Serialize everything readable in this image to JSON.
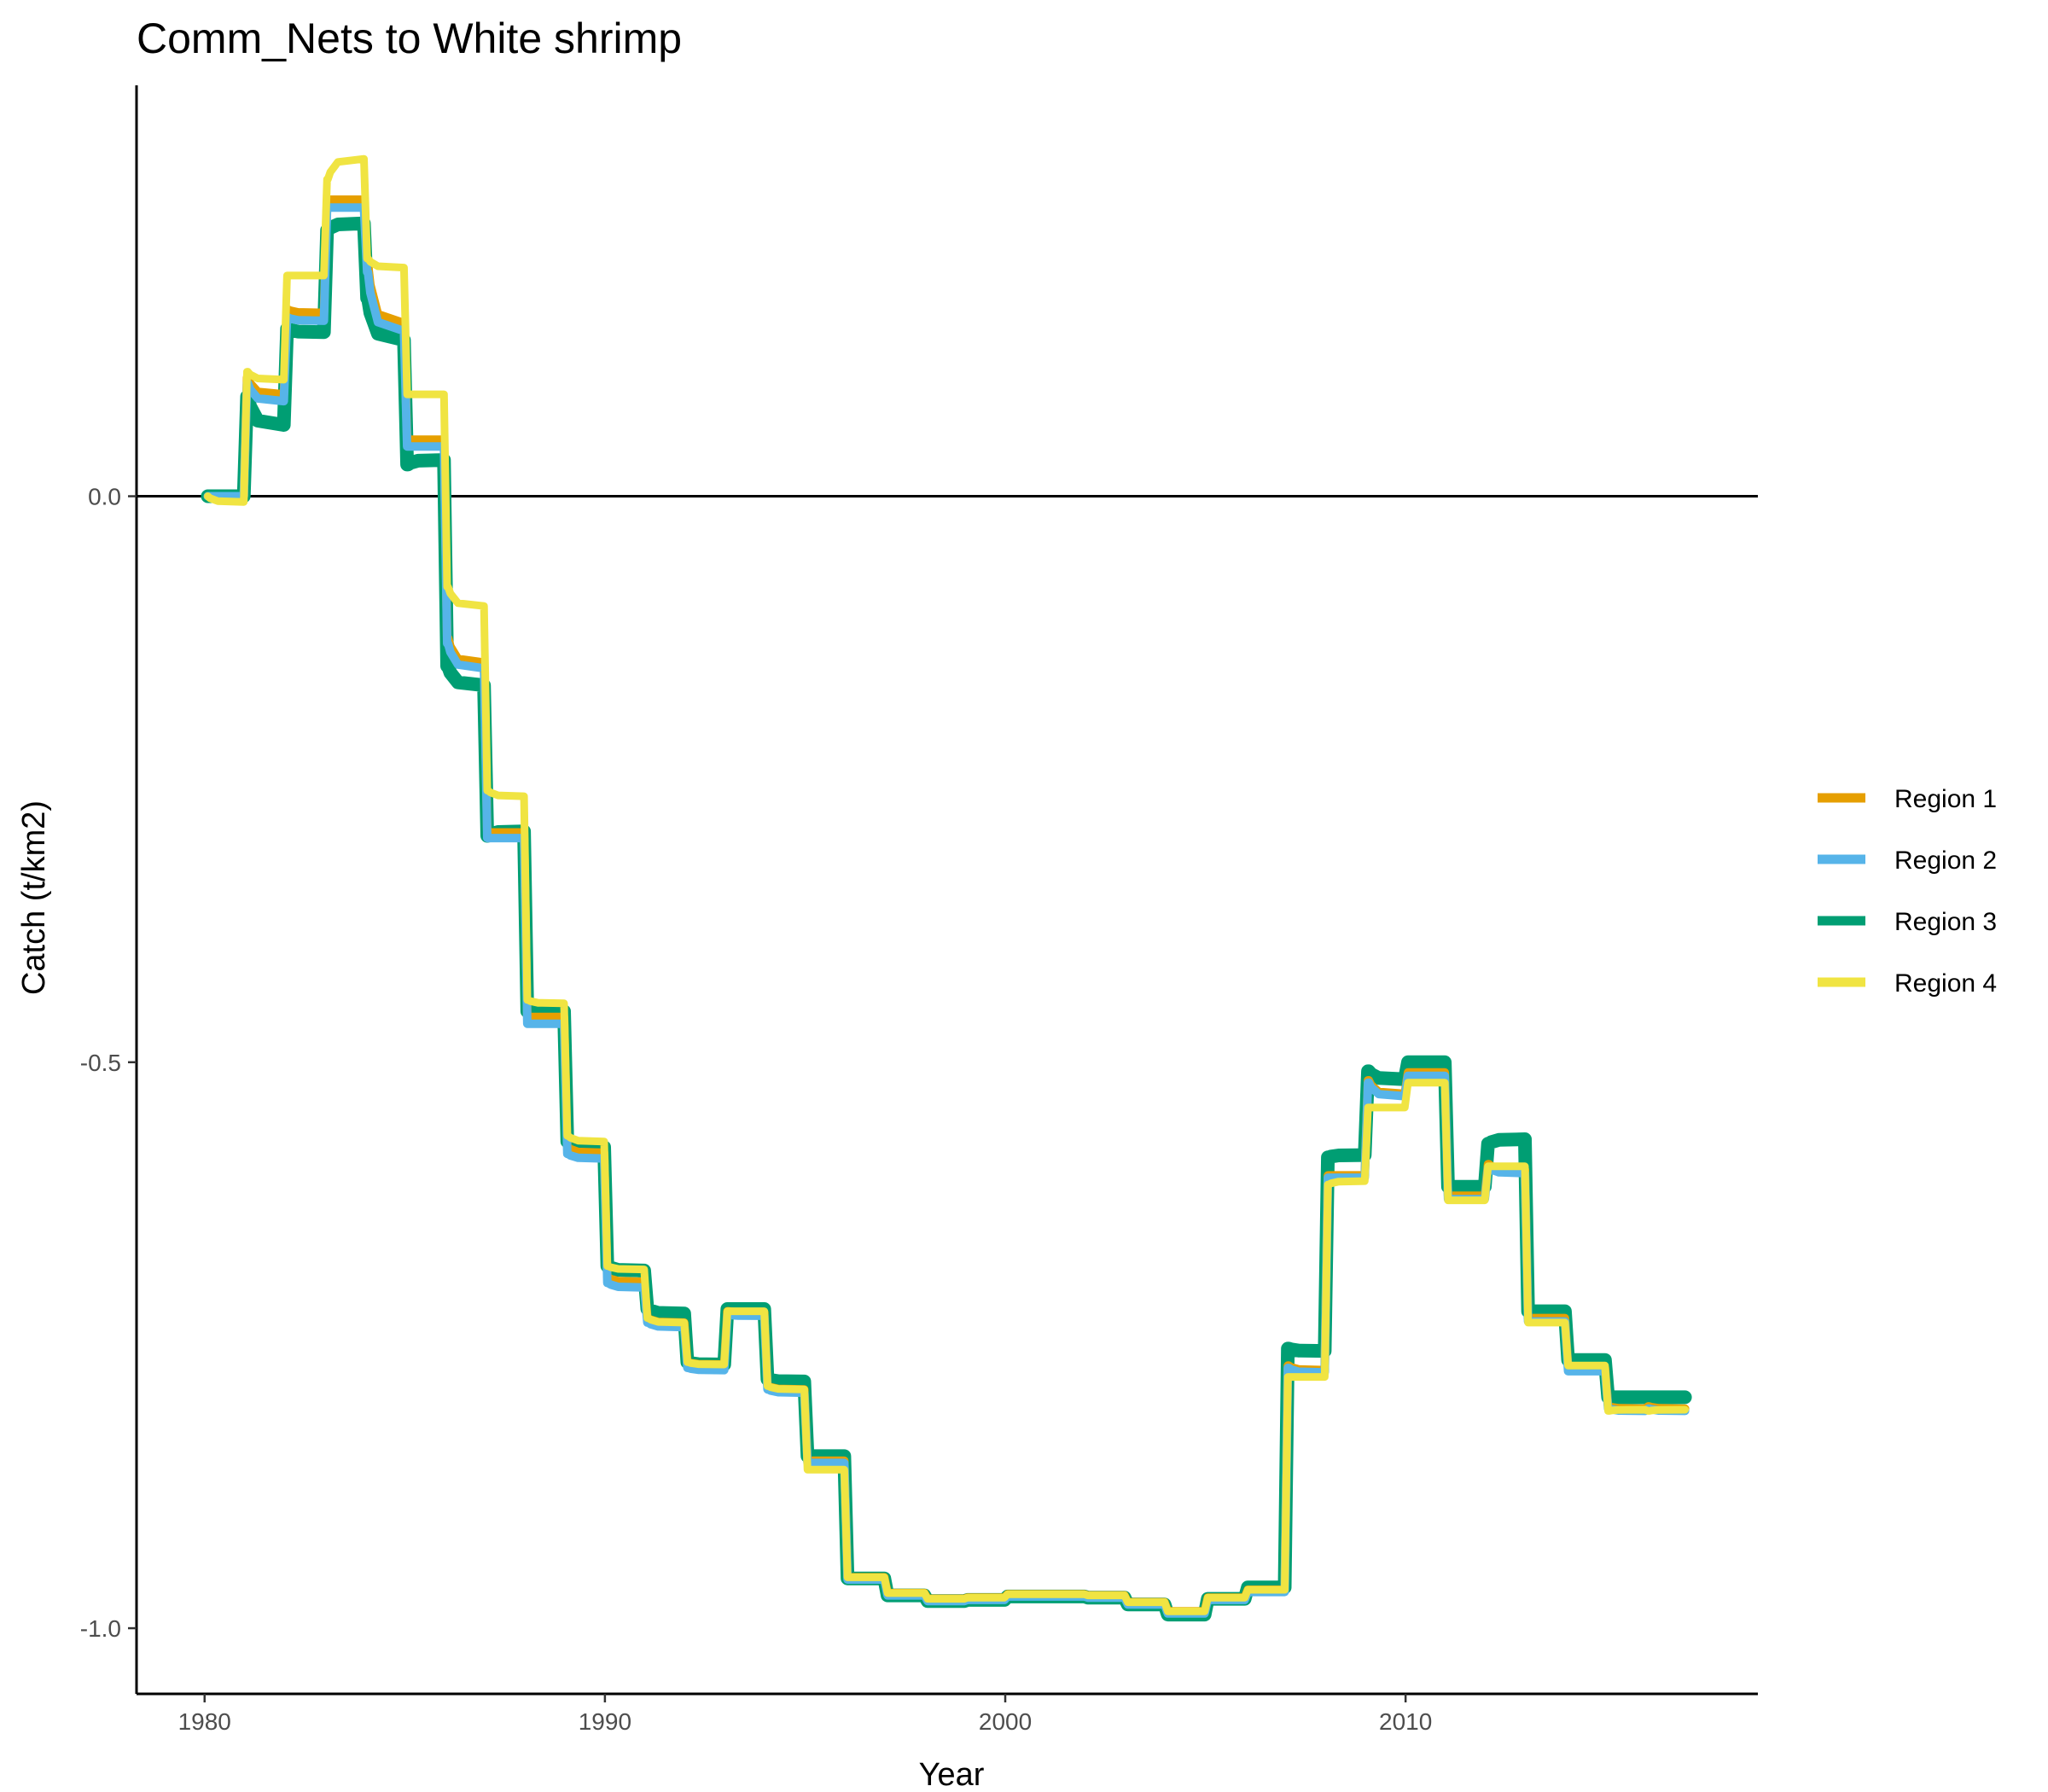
{
  "chart_data": {
    "type": "line",
    "title": "Comm_Nets to White shrimp",
    "xlabel": "Year",
    "ylabel": "Catch (t/km2)",
    "xlim": [
      1978.3,
      2018.8
    ],
    "ylim": [
      -1.058,
      0.363
    ],
    "x_ticks": [
      1980,
      1990,
      2000,
      2010
    ],
    "x_tick_labels": [
      "1980",
      "1990",
      "2000",
      "2010"
    ],
    "y_ticks": [
      -1.0,
      -0.5,
      0.0
    ],
    "y_tick_labels": [
      "-1.0",
      "-0.5",
      "0.0"
    ],
    "hline": 0,
    "grid": false,
    "legend_position": "right",
    "colors": {
      "region1": "#E69F00",
      "region2": "#56B4E9",
      "region3": "#009E73",
      "region4": "#F0E442"
    },
    "series": [
      {
        "name": "Region 1",
        "color": "#E69F00",
        "years": [
          1980,
          1981,
          1982,
          1983,
          1984,
          1985,
          1986,
          1987,
          1988,
          1989,
          1990,
          1991,
          1992,
          1993,
          1994,
          1995,
          1996,
          1997,
          1998,
          1999,
          2000,
          2001,
          2002,
          2003,
          2004,
          2005,
          2006,
          2007,
          2008,
          2009,
          2010,
          2011,
          2012,
          2013,
          2014,
          2015,
          2016
        ],
        "start": [
          0.0,
          0.105,
          0.165,
          0.262,
          0.205,
          0.05,
          -0.125,
          -0.297,
          -0.46,
          -0.575,
          -0.69,
          -0.726,
          -0.765,
          -0.72,
          -0.786,
          -0.852,
          -0.955,
          -0.969,
          -0.974,
          -0.973,
          -0.97,
          -0.97,
          -0.971,
          -0.977,
          -0.985,
          -0.973,
          -0.966,
          -0.768,
          -0.6,
          -0.516,
          -0.509,
          -0.618,
          -0.59,
          -0.726,
          -0.77,
          -0.804,
          -0.804
        ],
        "end": [
          0.0,
          0.09,
          0.162,
          0.262,
          0.153,
          0.05,
          -0.147,
          -0.297,
          -0.46,
          -0.58,
          -0.694,
          -0.73,
          -0.767,
          -0.721,
          -0.789,
          -0.852,
          -0.955,
          -0.969,
          -0.974,
          -0.973,
          -0.97,
          -0.97,
          -0.971,
          -0.977,
          -0.985,
          -0.973,
          -0.966,
          -0.772,
          -0.6,
          -0.528,
          -0.509,
          -0.618,
          -0.595,
          -0.726,
          -0.77,
          -0.806,
          -0.806
        ]
      },
      {
        "name": "Region 2",
        "color": "#56B4E9",
        "years": [
          1980,
          1981,
          1982,
          1983,
          1984,
          1985,
          1986,
          1987,
          1988,
          1989,
          1990,
          1991,
          1992,
          1993,
          1994,
          1995,
          1996,
          1997,
          1998,
          1999,
          2000,
          2001,
          2002,
          2003,
          2004,
          2005,
          2006,
          2007,
          2008,
          2009,
          2010,
          2011,
          2012,
          2013,
          2014,
          2015,
          2016
        ],
        "start": [
          0.0,
          0.1,
          0.158,
          0.255,
          0.198,
          0.044,
          -0.13,
          -0.302,
          -0.466,
          -0.581,
          -0.695,
          -0.73,
          -0.77,
          -0.723,
          -0.789,
          -0.854,
          -0.957,
          -0.971,
          -0.976,
          -0.975,
          -0.972,
          -0.972,
          -0.973,
          -0.979,
          -0.987,
          -0.975,
          -0.968,
          -0.77,
          -0.602,
          -0.518,
          -0.512,
          -0.621,
          -0.593,
          -0.729,
          -0.773,
          -0.806,
          -0.806
        ],
        "end": [
          0.0,
          0.084,
          0.155,
          0.255,
          0.146,
          0.044,
          -0.152,
          -0.302,
          -0.466,
          -0.585,
          -0.699,
          -0.734,
          -0.772,
          -0.724,
          -0.792,
          -0.854,
          -0.957,
          -0.971,
          -0.976,
          -0.975,
          -0.972,
          -0.972,
          -0.973,
          -0.979,
          -0.987,
          -0.975,
          -0.968,
          -0.774,
          -0.602,
          -0.53,
          -0.512,
          -0.621,
          -0.598,
          -0.729,
          -0.773,
          -0.808,
          -0.808
        ]
      },
      {
        "name": "Region 3",
        "color": "#009E73",
        "years": [
          1980,
          1981,
          1982,
          1983,
          1984,
          1985,
          1986,
          1987,
          1988,
          1989,
          1990,
          1991,
          1992,
          1993,
          1994,
          1995,
          1996,
          1997,
          1998,
          1999,
          2000,
          2001,
          2002,
          2003,
          2004,
          2005,
          2006,
          2007,
          2008,
          2009,
          2010,
          2011,
          2012,
          2013,
          2014,
          2015,
          2016
        ],
        "start": [
          0.0,
          0.088,
          0.148,
          0.235,
          0.175,
          0.028,
          -0.15,
          -0.3,
          -0.455,
          -0.57,
          -0.68,
          -0.718,
          -0.765,
          -0.718,
          -0.78,
          -0.848,
          -0.956,
          -0.971,
          -0.976,
          -0.975,
          -0.972,
          -0.972,
          -0.973,
          -0.979,
          -0.988,
          -0.974,
          -0.964,
          -0.753,
          -0.584,
          -0.508,
          -0.5,
          -0.61,
          -0.572,
          -0.72,
          -0.763,
          -0.796,
          -0.796
        ],
        "end": [
          0.0,
          0.063,
          0.145,
          0.241,
          0.138,
          0.032,
          -0.167,
          -0.296,
          -0.455,
          -0.575,
          -0.684,
          -0.722,
          -0.767,
          -0.718,
          -0.782,
          -0.848,
          -0.956,
          -0.971,
          -0.976,
          -0.975,
          -0.972,
          -0.972,
          -0.973,
          -0.979,
          -0.988,
          -0.974,
          -0.964,
          -0.755,
          -0.582,
          -0.515,
          -0.5,
          -0.61,
          -0.568,
          -0.72,
          -0.763,
          -0.796,
          -0.796
        ]
      },
      {
        "name": "Region 4",
        "color": "#F0E442",
        "years": [
          1980,
          1981,
          1982,
          1983,
          1984,
          1985,
          1986,
          1987,
          1988,
          1989,
          1990,
          1991,
          1992,
          1993,
          1994,
          1995,
          1996,
          1997,
          1998,
          1999,
          2000,
          2001,
          2002,
          2003,
          2004,
          2005,
          2006,
          2007,
          2008,
          2009,
          2010,
          2011,
          2012,
          2013,
          2014,
          2015,
          2016
        ],
        "start": [
          0.0,
          0.11,
          0.195,
          0.28,
          0.21,
          0.09,
          -0.08,
          -0.26,
          -0.445,
          -0.565,
          -0.68,
          -0.726,
          -0.765,
          -0.72,
          -0.786,
          -0.86,
          -0.955,
          -0.969,
          -0.974,
          -0.973,
          -0.97,
          -0.97,
          -0.971,
          -0.977,
          -0.985,
          -0.973,
          -0.966,
          -0.778,
          -0.608,
          -0.54,
          -0.518,
          -0.622,
          -0.592,
          -0.73,
          -0.768,
          -0.808,
          -0.808
        ],
        "end": [
          -0.005,
          0.103,
          0.195,
          0.298,
          0.202,
          0.09,
          -0.097,
          -0.265,
          -0.448,
          -0.57,
          -0.683,
          -0.73,
          -0.767,
          -0.72,
          -0.789,
          -0.86,
          -0.955,
          -0.969,
          -0.974,
          -0.973,
          -0.97,
          -0.97,
          -0.971,
          -0.977,
          -0.985,
          -0.973,
          -0.966,
          -0.778,
          -0.605,
          -0.54,
          -0.518,
          -0.622,
          -0.592,
          -0.73,
          -0.768,
          -0.807,
          -0.807
        ]
      }
    ]
  }
}
